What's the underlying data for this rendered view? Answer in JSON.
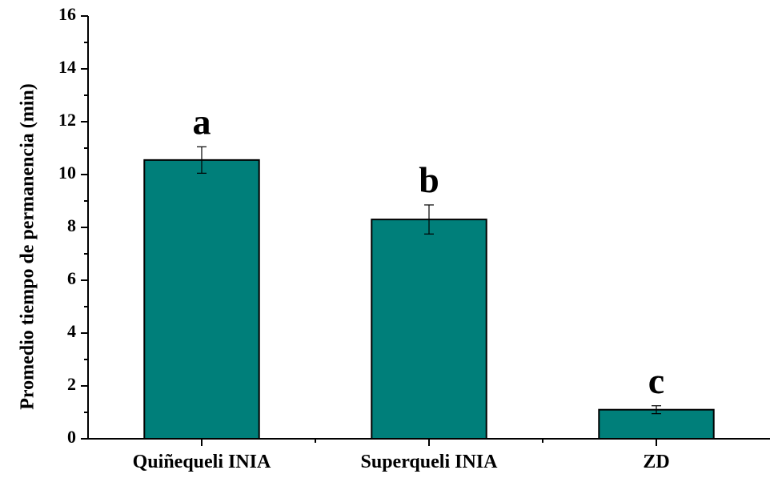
{
  "chart_data": {
    "type": "bar",
    "categories": [
      "Quiñequeli INIA",
      "Superqueli INIA",
      "ZD"
    ],
    "values": [
      10.55,
      8.3,
      1.1
    ],
    "errors": [
      0.5,
      0.55,
      0.15
    ],
    "significance_letters": [
      "a",
      "b",
      "c"
    ],
    "ylabel": "Promedio tiempo de permanencia (min)",
    "xlabel": "",
    "ylim": [
      0,
      16
    ],
    "yticks": [
      "0",
      "2",
      "4",
      "6",
      "8",
      "10",
      "12",
      "14",
      "16"
    ],
    "bar_color": "#007f7a",
    "grid": false,
    "legend": "none"
  }
}
